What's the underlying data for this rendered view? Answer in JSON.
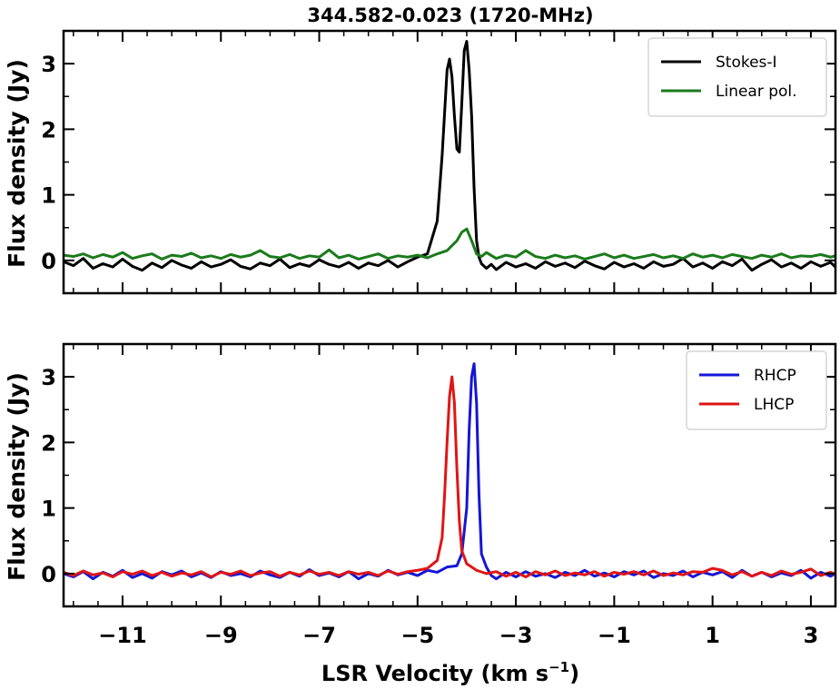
{
  "chart_data": [
    {
      "type": "line",
      "title": "344.582-0.023 (1720-MHz)",
      "ylabel": "Flux density (Jy)",
      "xlabel": "",
      "xlim": [
        -12.2,
        3.5
      ],
      "ylim": [
        -0.5,
        3.5
      ],
      "yticks": [
        0,
        1,
        2,
        3
      ],
      "xticks": [
        -11,
        -9,
        -7,
        -5,
        -3,
        -1,
        1,
        3
      ],
      "show_xtick_labels": false,
      "grid": false,
      "legend_position": "top-right",
      "series": [
        {
          "name": "Stokes-I",
          "color": "#000000",
          "x": [
            -12.2,
            -12.0,
            -11.8,
            -11.6,
            -11.4,
            -11.2,
            -11.0,
            -10.8,
            -10.6,
            -10.4,
            -10.2,
            -10.0,
            -9.8,
            -9.6,
            -9.4,
            -9.2,
            -9.0,
            -8.8,
            -8.6,
            -8.4,
            -8.2,
            -8.0,
            -7.8,
            -7.6,
            -7.4,
            -7.2,
            -7.0,
            -6.8,
            -6.6,
            -6.4,
            -6.2,
            -6.0,
            -5.8,
            -5.6,
            -5.4,
            -5.2,
            -5.0,
            -4.8,
            -4.6,
            -4.5,
            -4.4,
            -4.35,
            -4.3,
            -4.25,
            -4.2,
            -4.15,
            -4.1,
            -4.05,
            -4.0,
            -3.95,
            -3.9,
            -3.85,
            -3.8,
            -3.75,
            -3.7,
            -3.6,
            -3.5,
            -3.4,
            -3.2,
            -3.0,
            -2.8,
            -2.6,
            -2.4,
            -2.2,
            -2.0,
            -1.8,
            -1.6,
            -1.4,
            -1.2,
            -1.0,
            -0.8,
            -0.6,
            -0.4,
            -0.2,
            0.0,
            0.2,
            0.4,
            0.6,
            0.8,
            1.0,
            1.2,
            1.4,
            1.6,
            1.8,
            2.0,
            2.2,
            2.4,
            2.6,
            2.8,
            3.0,
            3.2,
            3.4,
            3.5
          ],
          "y": [
            -0.02,
            -0.08,
            0.03,
            -0.12,
            -0.05,
            -0.1,
            0.02,
            -0.09,
            -0.15,
            -0.04,
            -0.11,
            0.0,
            -0.07,
            -0.12,
            -0.02,
            -0.1,
            -0.06,
            0.01,
            -0.09,
            -0.13,
            -0.04,
            -0.08,
            0.02,
            -0.11,
            -0.05,
            -0.09,
            0.01,
            -0.06,
            -0.1,
            -0.03,
            -0.12,
            -0.04,
            -0.08,
            0.0,
            -0.1,
            -0.02,
            0.05,
            0.1,
            0.6,
            1.6,
            2.9,
            3.07,
            2.8,
            2.2,
            1.7,
            1.65,
            2.4,
            3.2,
            3.34,
            2.9,
            2.2,
            1.1,
            0.3,
            0.05,
            -0.05,
            -0.12,
            -0.06,
            -0.14,
            -0.03,
            -0.1,
            -0.05,
            -0.12,
            -0.02,
            -0.09,
            -0.04,
            -0.11,
            -0.01,
            -0.08,
            -0.13,
            -0.03,
            -0.1,
            -0.05,
            -0.12,
            -0.02,
            -0.09,
            -0.06,
            0.03,
            -0.1,
            -0.04,
            -0.12,
            -0.02,
            -0.08,
            0.02,
            -0.15,
            -0.06,
            0.01,
            -0.1,
            -0.04,
            -0.12,
            -0.02,
            -0.09,
            -0.03,
            -0.1
          ]
        },
        {
          "name": "Linear pol.",
          "color": "#1b7a1b",
          "x": [
            -12.2,
            -12.0,
            -11.8,
            -11.6,
            -11.4,
            -11.2,
            -11.0,
            -10.8,
            -10.6,
            -10.4,
            -10.2,
            -10.0,
            -9.8,
            -9.6,
            -9.4,
            -9.2,
            -9.0,
            -8.8,
            -8.6,
            -8.4,
            -8.2,
            -8.0,
            -7.8,
            -7.6,
            -7.4,
            -7.2,
            -7.0,
            -6.8,
            -6.6,
            -6.4,
            -6.2,
            -6.0,
            -5.8,
            -5.6,
            -5.4,
            -5.2,
            -5.0,
            -4.8,
            -4.6,
            -4.4,
            -4.2,
            -4.1,
            -4.0,
            -3.9,
            -3.8,
            -3.7,
            -3.6,
            -3.4,
            -3.2,
            -3.0,
            -2.8,
            -2.6,
            -2.4,
            -2.2,
            -2.0,
            -1.8,
            -1.6,
            -1.4,
            -1.2,
            -1.0,
            -0.8,
            -0.6,
            -0.4,
            -0.2,
            0.0,
            0.2,
            0.4,
            0.6,
            0.8,
            1.0,
            1.2,
            1.4,
            1.6,
            1.8,
            2.0,
            2.2,
            2.4,
            2.6,
            2.8,
            3.0,
            3.2,
            3.4,
            3.5
          ],
          "y": [
            0.08,
            0.06,
            0.1,
            0.04,
            0.09,
            0.05,
            0.12,
            0.03,
            0.07,
            0.1,
            0.02,
            0.08,
            0.06,
            0.11,
            0.04,
            0.07,
            0.03,
            0.09,
            0.05,
            0.08,
            0.15,
            0.06,
            0.04,
            0.09,
            0.03,
            0.07,
            0.05,
            0.16,
            0.04,
            0.08,
            0.02,
            0.06,
            0.1,
            0.03,
            0.07,
            0.05,
            0.08,
            0.04,
            0.1,
            0.15,
            0.3,
            0.43,
            0.48,
            0.3,
            0.1,
            0.06,
            0.12,
            0.03,
            0.08,
            0.05,
            0.15,
            0.06,
            0.03,
            0.08,
            0.04,
            0.07,
            0.02,
            0.06,
            0.1,
            0.04,
            0.08,
            0.03,
            0.06,
            0.09,
            0.04,
            0.07,
            0.03,
            0.1,
            0.05,
            0.08,
            0.04,
            0.09,
            0.06,
            0.03,
            0.08,
            0.05,
            0.1,
            0.04,
            0.07,
            0.06,
            0.09,
            0.05,
            0.07
          ]
        }
      ]
    },
    {
      "type": "line",
      "title": "",
      "ylabel": "Flux density (Jy)",
      "xlabel": "LSR Velocity (km s⁻¹)",
      "xlabel_main": "LSR Velocity (km s",
      "xlabel_sup": "−1",
      "xlabel_close": ")",
      "xlim": [
        -12.2,
        3.5
      ],
      "ylim": [
        -0.5,
        3.5
      ],
      "yticks": [
        0,
        1,
        2,
        3
      ],
      "xticks": [
        -11,
        -9,
        -7,
        -5,
        -3,
        -1,
        1,
        3
      ],
      "xtick_labels": [
        "−11",
        "−9",
        "−7",
        "−5",
        "−3",
        "−1",
        "1",
        "3"
      ],
      "show_xtick_labels": true,
      "grid": false,
      "legend_position": "top-right",
      "series": [
        {
          "name": "RHCP",
          "color": "#1515d6",
          "x": [
            -12.2,
            -12.0,
            -11.8,
            -11.6,
            -11.4,
            -11.2,
            -11.0,
            -10.8,
            -10.6,
            -10.4,
            -10.2,
            -10.0,
            -9.8,
            -9.6,
            -9.4,
            -9.2,
            -9.0,
            -8.8,
            -8.6,
            -8.4,
            -8.2,
            -8.0,
            -7.8,
            -7.6,
            -7.4,
            -7.2,
            -7.0,
            -6.8,
            -6.6,
            -6.4,
            -6.2,
            -6.0,
            -5.8,
            -5.6,
            -5.4,
            -5.2,
            -5.0,
            -4.8,
            -4.6,
            -4.4,
            -4.2,
            -4.1,
            -4.0,
            -3.95,
            -3.9,
            -3.85,
            -3.8,
            -3.75,
            -3.7,
            -3.6,
            -3.5,
            -3.4,
            -3.2,
            -3.0,
            -2.8,
            -2.6,
            -2.4,
            -2.2,
            -2.0,
            -1.8,
            -1.6,
            -1.4,
            -1.2,
            -1.0,
            -0.8,
            -0.6,
            -0.4,
            -0.2,
            0.0,
            0.2,
            0.4,
            0.6,
            0.8,
            1.0,
            1.2,
            1.4,
            1.6,
            1.8,
            2.0,
            2.2,
            2.4,
            2.6,
            2.8,
            3.0,
            3.2,
            3.4,
            3.5
          ],
          "y": [
            0.0,
            -0.05,
            0.03,
            -0.08,
            0.02,
            -0.04,
            0.05,
            -0.06,
            0.0,
            -0.07,
            0.03,
            -0.02,
            0.04,
            -0.05,
            0.01,
            -0.06,
            0.03,
            -0.03,
            0.0,
            -0.05,
            0.04,
            -0.02,
            -0.06,
            0.02,
            -0.04,
            0.06,
            -0.03,
            0.01,
            -0.05,
            0.03,
            -0.08,
            0.0,
            -0.04,
            0.05,
            -0.02,
            0.02,
            -0.03,
            0.05,
            0.02,
            0.1,
            0.12,
            0.3,
            1.0,
            2.2,
            3.0,
            3.2,
            2.6,
            1.2,
            0.3,
            0.1,
            -0.03,
            -0.08,
            0.02,
            -0.05,
            0.03,
            -0.04,
            0.0,
            -0.06,
            0.02,
            -0.03,
            0.05,
            -0.04,
            0.01,
            -0.05,
            0.03,
            -0.02,
            0.04,
            -0.06,
            0.0,
            -0.03,
            0.04,
            -0.05,
            0.02,
            -0.02,
            0.03,
            -0.06,
            0.05,
            -0.04,
            0.02,
            -0.05,
            0.01,
            -0.03,
            0.05,
            -0.07,
            0.02,
            -0.04,
            0.0
          ]
        },
        {
          "name": "LHCP",
          "color": "#e01515",
          "x": [
            -12.2,
            -12.0,
            -11.8,
            -11.6,
            -11.4,
            -11.2,
            -11.0,
            -10.8,
            -10.6,
            -10.4,
            -10.2,
            -10.0,
            -9.8,
            -9.6,
            -9.4,
            -9.2,
            -9.0,
            -8.8,
            -8.6,
            -8.4,
            -8.2,
            -8.0,
            -7.8,
            -7.6,
            -7.4,
            -7.2,
            -7.0,
            -6.8,
            -6.6,
            -6.4,
            -6.2,
            -6.0,
            -5.8,
            -5.6,
            -5.4,
            -5.2,
            -5.0,
            -4.8,
            -4.6,
            -4.5,
            -4.45,
            -4.4,
            -4.35,
            -4.3,
            -4.25,
            -4.2,
            -4.15,
            -4.1,
            -4.0,
            -3.9,
            -3.8,
            -3.6,
            -3.4,
            -3.2,
            -3.0,
            -2.8,
            -2.6,
            -2.4,
            -2.2,
            -2.0,
            -1.8,
            -1.6,
            -1.4,
            -1.2,
            -1.0,
            -0.8,
            -0.6,
            -0.4,
            -0.2,
            0.0,
            0.2,
            0.4,
            0.6,
            0.8,
            1.0,
            1.2,
            1.4,
            1.6,
            1.8,
            2.0,
            2.2,
            2.4,
            2.6,
            2.8,
            3.0,
            3.2,
            3.4,
            3.5
          ],
          "y": [
            0.02,
            -0.03,
            0.04,
            -0.02,
            0.01,
            -0.05,
            0.03,
            -0.01,
            0.04,
            -0.03,
            0.02,
            -0.04,
            0.01,
            -0.02,
            0.03,
            -0.05,
            0.02,
            -0.01,
            0.04,
            -0.03,
            0.01,
            0.03,
            -0.04,
            0.02,
            -0.02,
            0.04,
            -0.01,
            0.02,
            -0.03,
            0.03,
            -0.01,
            0.02,
            -0.03,
            0.04,
            -0.01,
            0.03,
            0.05,
            0.08,
            0.2,
            0.55,
            1.2,
            2.0,
            2.7,
            3.0,
            2.6,
            1.6,
            0.8,
            0.35,
            0.15,
            0.1,
            0.05,
            0.0,
            0.03,
            -0.04,
            0.02,
            -0.05,
            0.03,
            -0.02,
            0.04,
            -0.03,
            0.01,
            -0.02,
            0.03,
            -0.04,
            0.02,
            -0.01,
            0.03,
            -0.02,
            0.04,
            -0.03,
            0.01,
            -0.02,
            0.03,
            0.02,
            0.08,
            0.05,
            -0.02,
            0.03,
            -0.04,
            0.02,
            -0.03,
            0.04,
            -0.01,
            0.02,
            0.07,
            -0.03,
            0.02,
            -0.01
          ]
        }
      ]
    }
  ]
}
